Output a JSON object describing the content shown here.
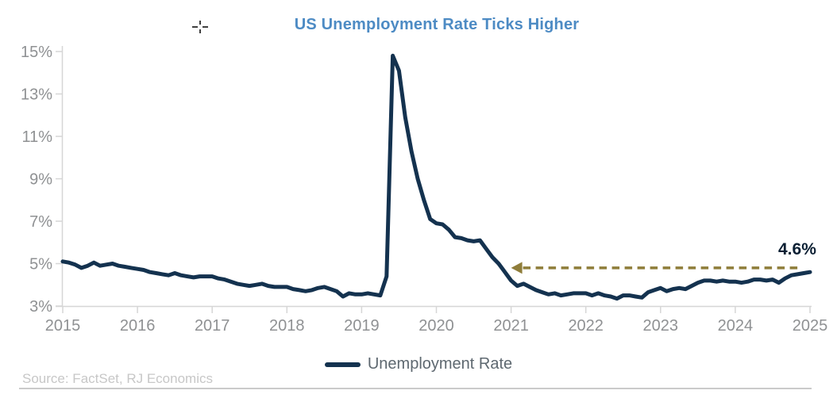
{
  "title": "US Unemployment Rate Ticks Higher",
  "source": "Source: FactSet, RJ Economics",
  "icons": {
    "cursor": "crosshair-pointer",
    "annotation_arrow": "left-arrowhead"
  },
  "colors": {
    "title": "#4D8BC4",
    "line": "#14324F",
    "dashed": "#8F7D3A",
    "annotation_text": "#0B1F33",
    "axis_text": "#8F9193",
    "axis_line": "#D6D6D6",
    "legend_text": "#5E6870",
    "source_text": "#C7C7C7",
    "divider": "#CACACA"
  },
  "chart_data": {
    "type": "line",
    "title": "US Unemployment Rate Ticks Higher",
    "x_domain": [
      2015,
      2025
    ],
    "y_domain": [
      3,
      15
    ],
    "grid": false,
    "legend_position": "bottom",
    "x_ticks": [
      "2015",
      "2016",
      "2017",
      "2018",
      "2019",
      "2020",
      "2021",
      "2022",
      "2023",
      "2024",
      "2025"
    ],
    "y_ticks": [
      {
        "label": "3%",
        "value": 3
      },
      {
        "label": "5%",
        "value": 5
      },
      {
        "label": "7%",
        "value": 7
      },
      {
        "label": "9%",
        "value": 9
      },
      {
        "label": "11%",
        "value": 11
      },
      {
        "label": "13%",
        "value": 13
      },
      {
        "label": "15%",
        "value": 15
      }
    ],
    "series": [
      {
        "name": "Unemployment Rate",
        "color": "#14324F",
        "x_start": 2015.0,
        "x_step": 0.0833333,
        "values": [
          5.1,
          5.05,
          4.95,
          4.8,
          4.9,
          5.05,
          4.9,
          4.95,
          5.0,
          4.9,
          4.85,
          4.8,
          4.75,
          4.7,
          4.6,
          4.55,
          4.5,
          4.45,
          4.55,
          4.45,
          4.4,
          4.35,
          4.4,
          4.4,
          4.4,
          4.3,
          4.25,
          4.15,
          4.05,
          4.0,
          3.95,
          4.0,
          4.05,
          3.95,
          3.9,
          3.9,
          3.9,
          3.8,
          3.75,
          3.7,
          3.75,
          3.85,
          3.9,
          3.8,
          3.7,
          3.45,
          3.6,
          3.55,
          3.55,
          3.6,
          3.55,
          3.5,
          4.4,
          14.8,
          14.1,
          11.9,
          10.3,
          9.0,
          8.0,
          7.1,
          6.9,
          6.85,
          6.6,
          6.25,
          6.2,
          6.1,
          6.05,
          6.1,
          5.7,
          5.3,
          5.0,
          4.6,
          4.2,
          3.95,
          4.05,
          3.9,
          3.75,
          3.65,
          3.55,
          3.6,
          3.5,
          3.55,
          3.6,
          3.6,
          3.6,
          3.5,
          3.6,
          3.5,
          3.45,
          3.35,
          3.5,
          3.5,
          3.45,
          3.4,
          3.65,
          3.75,
          3.85,
          3.7,
          3.8,
          3.85,
          3.8,
          3.95,
          4.1,
          4.2,
          4.2,
          4.15,
          4.2,
          4.15,
          4.15,
          4.1,
          4.15,
          4.25,
          4.25,
          4.2,
          4.25,
          4.1,
          4.3,
          4.45,
          4.5,
          4.55,
          4.6
        ]
      }
    ],
    "annotation": {
      "text": "4.6%",
      "line_y": 4.8,
      "x_from": 2021.0,
      "x_to": 2024.87,
      "arrow": "left",
      "color": "#8F7D3A"
    }
  }
}
